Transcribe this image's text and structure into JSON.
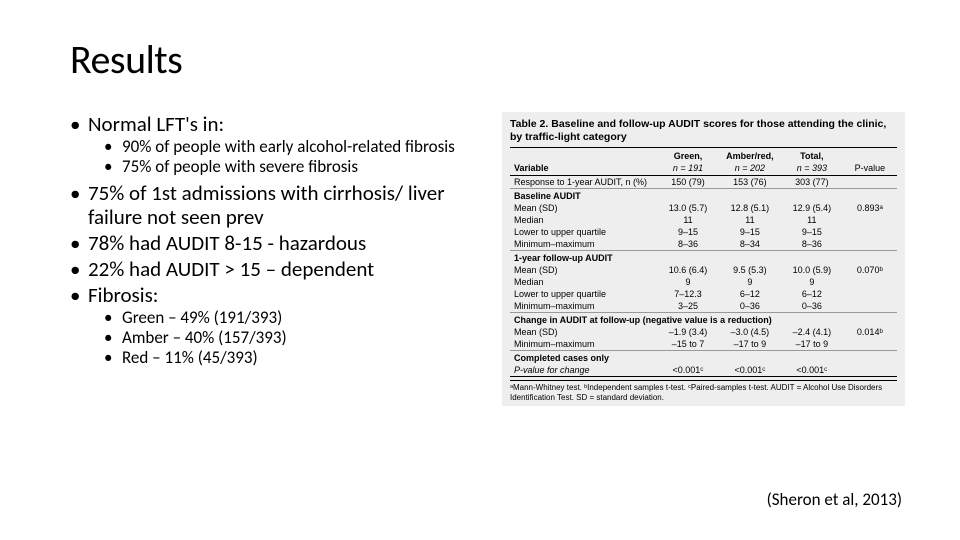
{
  "title": "Results",
  "bullets": {
    "b1": "Normal LFT's in:",
    "b1_sub1": "90% of people with early alcohol-related fibrosis",
    "b1_sub2": "75% of people with severe fibrosis",
    "b2": "75% of 1st admissions with cirrhosis/ liver failure not seen prev",
    "b3": "78% had AUDIT 8-15 - hazardous",
    "b4": "22% had AUDIT > 15 – dependent",
    "b5": "Fibrosis:",
    "b5_sub1": "Green – 49% (191/393)",
    "b5_sub2": "Amber – 40% (157/393)",
    "b5_sub3": "Red – 11% (45/393)"
  },
  "table": {
    "title": "Table 2. Baseline and follow-up AUDIT scores for those attending the clinic, by traffic-light category",
    "headers": {
      "variable": "Variable",
      "green": "Green,",
      "green_n": "n = 191",
      "amber": "Amber/red,",
      "amber_n": "n = 202",
      "total": "Total,",
      "total_n": "n = 393",
      "pvalue": "P-value"
    },
    "rows": {
      "resp": {
        "label": "Response to 1-year AUDIT, n (%)",
        "g": "150 (79)",
        "a": "153 (76)",
        "t": "303 (77)"
      },
      "s1": "Baseline AUDIT",
      "r1": {
        "label": "Mean (SD)",
        "g": "13.0 (5.7)",
        "a": "12.8 (5.1)",
        "t": "12.9 (5.4)",
        "p": "0.893ᵃ"
      },
      "r2": {
        "label": "Median",
        "g": "11",
        "a": "11",
        "t": "11"
      },
      "r3": {
        "label": "Lower to upper quartile",
        "g": "9–15",
        "a": "9–15",
        "t": "9–15"
      },
      "r4": {
        "label": "Minimum–maximum",
        "g": "8–36",
        "a": "8–34",
        "t": "8–36"
      },
      "s2": "1-year follow-up AUDIT",
      "r5": {
        "label": "Mean (SD)",
        "g": "10.6 (6.4)",
        "a": "9.5 (5.3)",
        "t": "10.0 (5.9)",
        "p": "0.070ᵇ"
      },
      "r6": {
        "label": "Median",
        "g": "9",
        "a": "9",
        "t": "9"
      },
      "r7": {
        "label": "Lower to upper quartile",
        "g": "7–12.3",
        "a": "6–12",
        "t": "6–12"
      },
      "r8": {
        "label": "Minimum–maximum",
        "g": "3–25",
        "a": "0–36",
        "t": "0–36"
      },
      "s3": "Change in AUDIT at follow-up (negative value is a reduction)",
      "r9": {
        "label": "Mean (SD)",
        "g": "–1.9 (3.4)",
        "a": "–3.0 (4.5)",
        "t": "–2.4 (4.1)",
        "p": "0.014ᵇ"
      },
      "r10": {
        "label": "Minimum–maximum",
        "g": "–15 to 7",
        "a": "–17 to 9",
        "t": "–17 to 9"
      },
      "s4": "Completed cases only",
      "r11": {
        "label": "P-value for change",
        "g": "<0.001ᶜ",
        "a": "<0.001ᶜ",
        "t": "<0.001ᶜ"
      }
    },
    "footnote": "ᵃMann-Whitney test. ᵇIndependent samples t-test. ᶜPaired-samples t-test. AUDIT = Alcohol Use Disorders Identification Test. SD = standard deviation."
  },
  "citation": "(Sheron et al, 2013)",
  "colors": {
    "background": "#ffffff",
    "text": "#000000",
    "table_bg": "#eeeeee",
    "table_border": "#000000"
  }
}
